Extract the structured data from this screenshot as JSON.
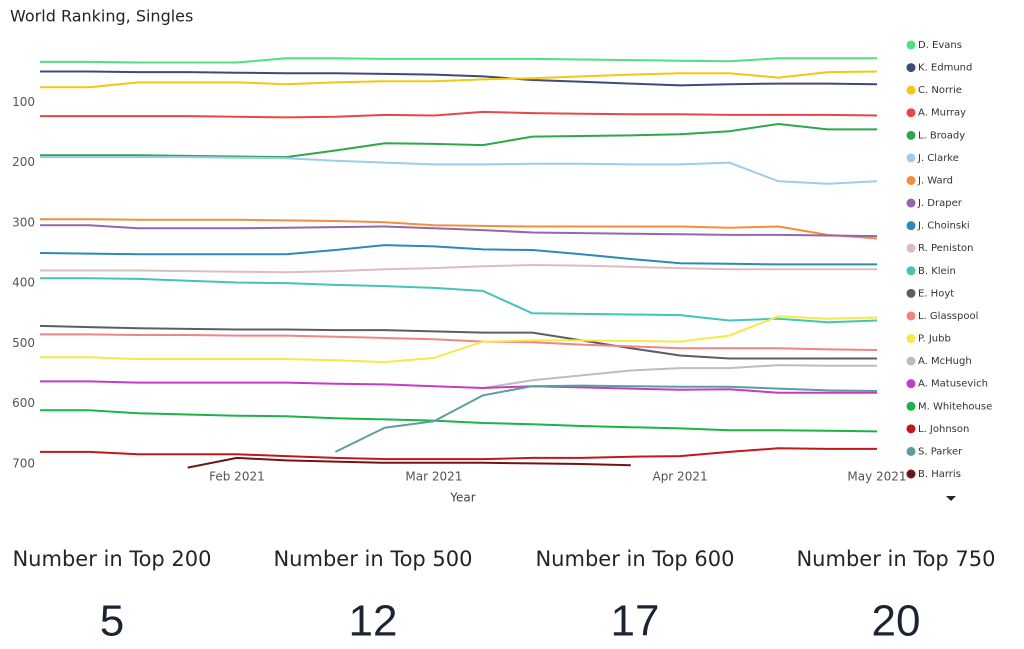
{
  "chart_data": {
    "type": "line",
    "title": "World Ranking, Singles",
    "x_label": "Year",
    "categories": [
      null,
      null,
      null,
      null,
      "Feb 2021",
      null,
      null,
      null,
      "Mar 2021",
      null,
      null,
      null,
      null,
      "Apr 2021",
      null,
      null,
      null,
      "May 2021"
    ],
    "ylim": [
      710,
      0
    ],
    "yticks": [
      100,
      200,
      300,
      400,
      500,
      600,
      700
    ],
    "grid": false,
    "legend": "right",
    "series": [
      {
        "name": "D. Evans",
        "color": "#4fe07f",
        "values": [
          33,
          33,
          34,
          34,
          34,
          27,
          27,
          28,
          28,
          28,
          28,
          29,
          30,
          31,
          32,
          27,
          27,
          27
        ]
      },
      {
        "name": "K. Edmund",
        "color": "#3d4b78",
        "values": [
          49,
          49,
          50,
          50,
          51,
          52,
          52,
          53,
          54,
          57,
          63,
          66,
          69,
          72,
          70,
          69,
          69,
          70
        ]
      },
      {
        "name": "C. Norrie",
        "color": "#f2c811",
        "values": [
          75,
          75,
          67,
          67,
          67,
          70,
          67,
          65,
          65,
          62,
          60,
          57,
          54,
          52,
          52,
          59,
          50,
          49
        ]
      },
      {
        "name": "A. Murray",
        "color": "#e6474b",
        "values": [
          123,
          123,
          123,
          123,
          124,
          125,
          124,
          121,
          122,
          116,
          118,
          119,
          120,
          120,
          121,
          121,
          121,
          122
        ]
      },
      {
        "name": "L. Broady",
        "color": "#2fa84a",
        "values": [
          188,
          188,
          188,
          189,
          190,
          191,
          180,
          168,
          169,
          171,
          157,
          156,
          155,
          153,
          148,
          136,
          145,
          145
        ]
      },
      {
        "name": "J. Clarke",
        "color": "#9fcbef",
        "values": [
          191,
          191,
          191,
          191,
          192,
          193,
          197,
          200,
          203,
          203,
          202,
          202,
          203,
          203,
          200,
          231,
          235,
          231
        ]
      },
      {
        "name": "J. Ward",
        "color": "#f28e3c",
        "values": [
          294,
          294,
          295,
          295,
          295,
          296,
          297,
          299,
          304,
          305,
          306,
          306,
          306,
          306,
          308,
          306,
          320,
          326
        ]
      },
      {
        "name": "J. Draper",
        "color": "#9466ad",
        "values": [
          304,
          304,
          309,
          309,
          309,
          308,
          307,
          306,
          309,
          312,
          316,
          317,
          318,
          319,
          320,
          320,
          321,
          322
        ]
      },
      {
        "name": "J. Choinski",
        "color": "#2c8ab5",
        "values": [
          350,
          351,
          352,
          352,
          352,
          352,
          345,
          337,
          339,
          344,
          345,
          352,
          360,
          367,
          368,
          369,
          369,
          369
        ]
      },
      {
        "name": "R. Peniston",
        "color": "#dcbcbf",
        "values": [
          379,
          379,
          379,
          380,
          381,
          382,
          380,
          377,
          375,
          372,
          370,
          371,
          373,
          375,
          377,
          377,
          377,
          377
        ]
      },
      {
        "name": "B. Klein",
        "color": "#43c4b6",
        "values": [
          392,
          392,
          393,
          396,
          399,
          400,
          403,
          405,
          408,
          413,
          450,
          451,
          452,
          453,
          462,
          459,
          465,
          462
        ]
      },
      {
        "name": "E. Hoyt",
        "color": "#5b5f63",
        "values": [
          471,
          473,
          475,
          476,
          477,
          477,
          478,
          478,
          480,
          482,
          482,
          495,
          508,
          520,
          525,
          525,
          525,
          525
        ]
      },
      {
        "name": "L. Glasspool",
        "color": "#f08585",
        "values": [
          485,
          485,
          486,
          486,
          487,
          487,
          489,
          491,
          493,
          497,
          498,
          502,
          505,
          508,
          508,
          508,
          510,
          511
        ]
      },
      {
        "name": "P. Jubb",
        "color": "#f5e94a",
        "values": [
          523,
          523,
          526,
          526,
          526,
          526,
          528,
          531,
          524,
          497,
          495,
          495,
          496,
          497,
          487,
          455,
          459,
          457
        ]
      },
      {
        "name": "A. McHugh",
        "color": "#bdbdbd",
        "values": [
          null,
          null,
          null,
          null,
          null,
          null,
          null,
          null,
          null,
          574,
          561,
          553,
          545,
          541,
          541,
          536,
          537,
          537
        ]
      },
      {
        "name": "A. Matusevich",
        "color": "#c53bc8",
        "values": [
          563,
          563,
          565,
          565,
          565,
          565,
          567,
          568,
          571,
          574,
          571,
          573,
          575,
          577,
          576,
          582,
          582,
          582
        ]
      },
      {
        "name": "M. Whitehouse",
        "color": "#1bb34a",
        "values": [
          611,
          611,
          616,
          618,
          620,
          621,
          624,
          626,
          628,
          632,
          634,
          637,
          639,
          641,
          644,
          644,
          645,
          646
        ]
      },
      {
        "name": "L. Johnson",
        "color": "#c4161c",
        "values": [
          680,
          680,
          684,
          684,
          684,
          687,
          690,
          692,
          692,
          692,
          690,
          690,
          688,
          687,
          680,
          674,
          675,
          675
        ]
      },
      {
        "name": "S. Parker",
        "color": "#5f9c9c",
        "values": [
          null,
          null,
          null,
          null,
          null,
          null,
          680,
          640,
          629,
          586,
          571,
          570,
          571,
          572,
          572,
          575,
          578,
          579
        ]
      },
      {
        "name": "B. Harris",
        "color": "#6e1616",
        "values": [
          null,
          null,
          null,
          706,
          690,
          694,
          696,
          698,
          698,
          698,
          699,
          700,
          702,
          null,
          null,
          null,
          null,
          null
        ]
      }
    ]
  },
  "cards": [
    {
      "title": "Number in Top 200",
      "value": 5
    },
    {
      "title": "Number in Top 500",
      "value": 12
    },
    {
      "title": "Number in Top 600",
      "value": 17
    },
    {
      "title": "Number in Top 750",
      "value": 20
    }
  ]
}
